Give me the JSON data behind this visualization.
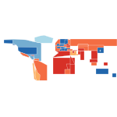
{
  "title": "",
  "figsize": [
    1.5,
    1.5
  ],
  "dpi": 100,
  "background_color": "#ffffff",
  "color_scheme": {
    "very_high": "#2166ac",
    "high": "#74add1",
    "medium_high": "#abd9e9",
    "medium": "#fee090",
    "medium_low": "#fdae61",
    "low": "#f46d43",
    "very_low": "#d73027",
    "no_data": "#b0b0b0"
  },
  "country_colors": {
    "USA": "#2166ac",
    "CAN": "#74add1",
    "GRL": "#abd9e9",
    "MEX": "#f46d43",
    "GTM": "#d73027",
    "BLZ": "#d73027",
    "HND": "#d73027",
    "SLV": "#d73027",
    "NIC": "#d73027",
    "CRI": "#fdae61",
    "PAN": "#fdae61",
    "CUB": "#d73027",
    "HTI": "#d73027",
    "DOM": "#d73027",
    "JAM": "#d73027",
    "TTO": "#fdae61",
    "COL": "#f46d43",
    "VEN": "#f46d43",
    "GUY": "#d73027",
    "SUR": "#d73027",
    "BRA": "#f46d43",
    "ECU": "#f46d43",
    "PER": "#f46d43",
    "BOL": "#d73027",
    "CHL": "#fdae61",
    "ARG": "#fdae61",
    "URY": "#fdae61",
    "PRY": "#d73027",
    "GBR": "#2166ac",
    "IRL": "#2166ac",
    "ISL": "#74add1",
    "NOR": "#2166ac",
    "SWE": "#2166ac",
    "FIN": "#2166ac",
    "DNK": "#2166ac",
    "NLD": "#2166ac",
    "BEL": "#2166ac",
    "FRA": "#2166ac",
    "ESP": "#2166ac",
    "PRT": "#74add1",
    "DEU": "#2166ac",
    "CHE": "#2166ac",
    "AUT": "#2166ac",
    "ITA": "#2166ac",
    "LUX": "#2166ac",
    "POL": "#74add1",
    "CZE": "#74add1",
    "SVK": "#74add1",
    "HUN": "#74add1",
    "ROU": "#f46d43",
    "BGR": "#f46d43",
    "SRB": "#f46d43",
    "HRV": "#fdae61",
    "GRC": "#74add1",
    "TUR": "#f46d43",
    "RUS": "#f46d43",
    "UKR": "#d73027",
    "BLR": "#d73027",
    "LTU": "#fdae61",
    "LVA": "#fdae61",
    "EST": "#fdae61",
    "MDA": "#d73027",
    "GEO": "#d73027",
    "ARM": "#d73027",
    "AZE": "#d73027",
    "KAZ": "#f46d43",
    "UZB": "#d73027",
    "TKM": "#d73027",
    "TJK": "#d73027",
    "KGZ": "#d73027",
    "MNG": "#d73027",
    "CHN": "#f46d43",
    "JPN": "#2166ac",
    "KOR": "#74add1",
    "PRK": "#d73027",
    "TWN": "#74add1",
    "IND": "#d73027",
    "PAK": "#d73027",
    "BGD": "#d73027",
    "LKA": "#d73027",
    "NPL": "#d73027",
    "BTN": "#d73027",
    "MMR": "#d73027",
    "THA": "#fdae61",
    "VNM": "#d73027",
    "KHM": "#d73027",
    "LAO": "#d73027",
    "MYS": "#fdae61",
    "SGP": "#2166ac",
    "IDN": "#f46d43",
    "PHL": "#d73027",
    "PNG": "#d73027",
    "AUS": "#2166ac",
    "NZL": "#2166ac",
    "IRN": "#d73027",
    "IRQ": "#d73027",
    "SAU": "#fdae61",
    "YEM": "#d73027",
    "OMN": "#fdae61",
    "ARE": "#fdae61",
    "QAT": "#fdae61",
    "KWT": "#fdae61",
    "BHR": "#fdae61",
    "JOR": "#d73027",
    "SYR": "#d73027",
    "LBN": "#fdae61",
    "ISR": "#74add1",
    "EGY": "#d73027",
    "LBY": "#d73027",
    "TUN": "#d73027",
    "DZA": "#d73027",
    "MAR": "#d73027",
    "MRT": "#d73027",
    "SEN": "#d73027",
    "MLI": "#d73027",
    "GNB": "#d73027",
    "GIN": "#d73027",
    "SLE": "#d73027",
    "LBR": "#d73027",
    "CIV": "#d73027",
    "GHA": "#d73027",
    "BFA": "#d73027",
    "NER": "#d73027",
    "NGA": "#d73027",
    "CMR": "#d73027",
    "CAF": "#d73027",
    "TCD": "#d73027",
    "SDN": "#d73027",
    "SSD": "#d73027",
    "ETH": "#d73027",
    "ERI": "#d73027",
    "DJI": "#d73027",
    "SOM": "#b0b0b0",
    "KEN": "#d73027",
    "UGA": "#d73027",
    "RWA": "#d73027",
    "BDI": "#d73027",
    "TZA": "#d73027",
    "MOZ": "#d73027",
    "ZMB": "#d73027",
    "MWI": "#d73027",
    "ZWE": "#d73027",
    "AGO": "#d73027",
    "COD": "#d73027",
    "COG": "#d73027",
    "GAB": "#f46d43",
    "GNQ": "#d73027",
    "ZAF": "#f46d43",
    "BWA": "#f46d43",
    "NAM": "#d73027",
    "SWZ": "#d73027",
    "LSO": "#d73027",
    "MDG": "#d73027",
    "AFG": "#d73027",
    "SVN": "#74add1",
    "MKD": "#d73027",
    "ALB": "#d73027",
    "BIH": "#d73027",
    "MNE": "#d73027",
    "XKX": "#d73027",
    "CYP": "#74add1",
    "MLT": "#2166ac",
    "FJI": "#d73027",
    "SLB": "#d73027",
    "VUT": "#d73027",
    "WSM": "#d73027",
    "TON": "#d73027",
    "KIR": "#d73027",
    "MHL": "#d73027",
    "FSM": "#d73027",
    "PLW": "#d73027",
    "NRU": "#d73027",
    "TUV": "#d73027"
  }
}
